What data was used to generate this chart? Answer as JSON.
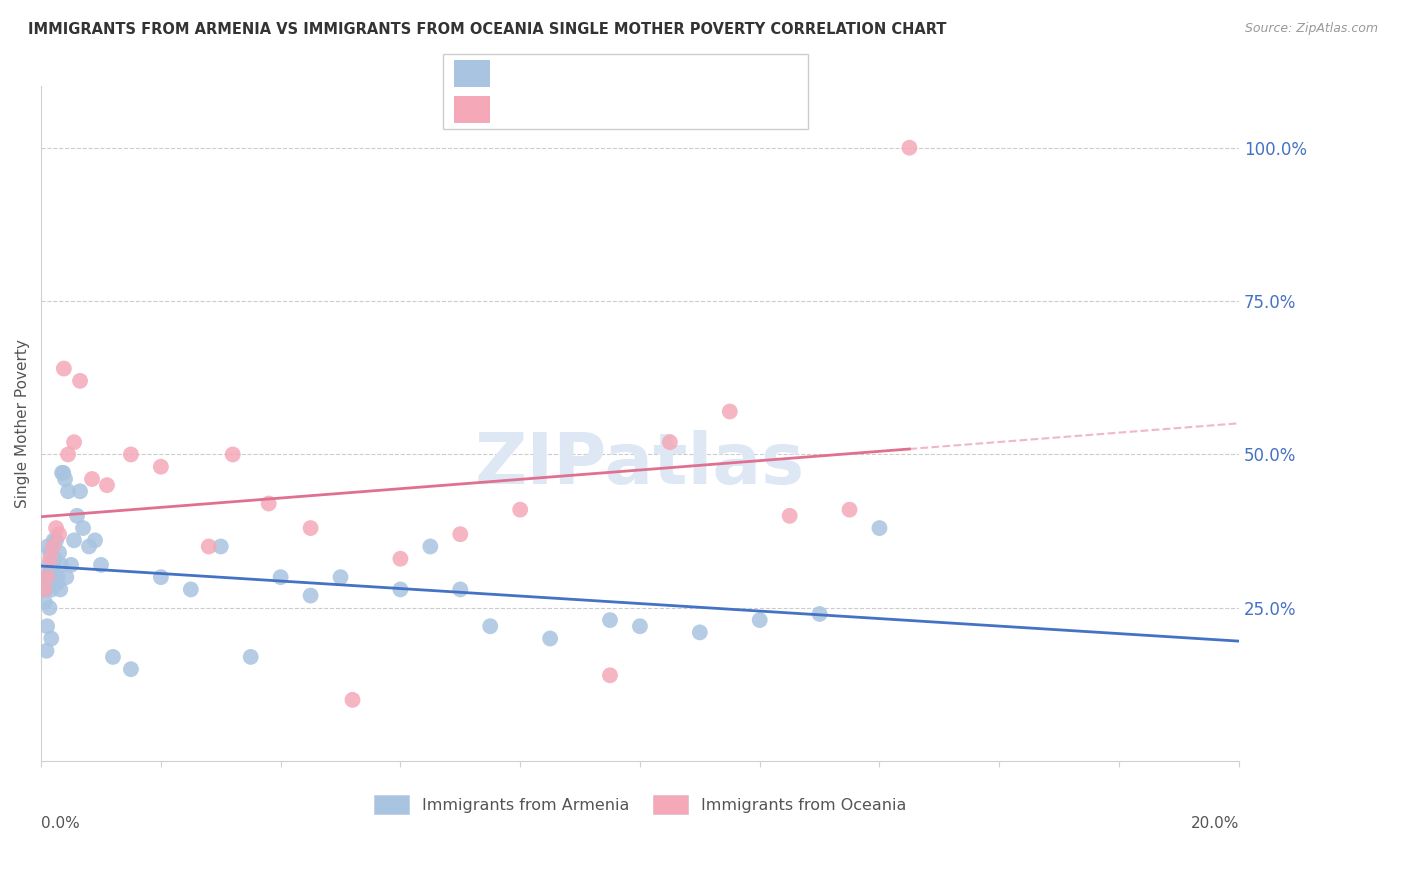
{
  "title": "IMMIGRANTS FROM ARMENIA VS IMMIGRANTS FROM OCEANIA SINGLE MOTHER POVERTY CORRELATION CHART",
  "source": "Source: ZipAtlas.com",
  "ylabel": "Single Mother Poverty",
  "armenia_color": "#a8c4e0",
  "oceania_color": "#f4a8b8",
  "armenia_line_color": "#4472c4",
  "oceania_line_color": "#e07090",
  "xmin": 0.0,
  "xmax": 20.0,
  "ymin": 0.0,
  "ymax": 110.0,
  "ytick_pct": [
    25.0,
    50.0,
    75.0,
    100.0
  ],
  "arm_x": [
    0.05,
    0.08,
    0.1,
    0.11,
    0.12,
    0.13,
    0.14,
    0.15,
    0.16,
    0.17,
    0.18,
    0.19,
    0.2,
    0.21,
    0.22,
    0.23,
    0.25,
    0.27,
    0.28,
    0.3,
    0.32,
    0.35,
    0.37,
    0.4,
    0.42,
    0.45,
    0.5,
    0.55,
    0.6,
    0.65,
    0.7,
    0.8,
    0.9,
    1.0,
    1.2,
    1.5,
    2.0,
    2.5,
    3.0,
    3.5,
    4.0,
    4.5,
    5.0,
    6.0,
    6.5,
    7.0,
    7.5,
    8.5,
    9.5,
    10.0,
    11.0,
    12.0,
    13.0,
    14.0,
    0.06,
    0.09,
    0.24,
    0.33
  ],
  "arm_y": [
    30,
    28,
    22,
    35,
    30,
    32,
    25,
    34,
    31,
    20,
    28,
    29,
    32,
    36,
    30,
    33,
    36,
    29,
    30,
    34,
    28,
    47,
    47,
    46,
    30,
    44,
    32,
    36,
    40,
    44,
    38,
    35,
    36,
    32,
    17,
    15,
    30,
    28,
    35,
    17,
    30,
    27,
    30,
    28,
    35,
    28,
    22,
    20,
    23,
    22,
    21,
    23,
    24,
    38,
    26,
    18,
    29,
    32
  ],
  "oce_x": [
    0.05,
    0.1,
    0.15,
    0.2,
    0.25,
    0.3,
    0.38,
    0.45,
    0.55,
    0.65,
    0.85,
    1.1,
    1.5,
    2.0,
    2.8,
    3.2,
    3.8,
    4.5,
    5.2,
    6.0,
    7.0,
    8.0,
    9.5,
    10.5,
    11.5,
    12.5,
    13.5,
    14.5
  ],
  "oce_y": [
    28,
    30,
    33,
    35,
    38,
    37,
    64,
    50,
    52,
    62,
    46,
    45,
    50,
    48,
    35,
    50,
    42,
    38,
    10,
    33,
    37,
    41,
    14,
    52,
    57,
    40,
    41,
    100
  ],
  "watermark": "ZIPatlas",
  "watermark_color": "#dde8f4"
}
